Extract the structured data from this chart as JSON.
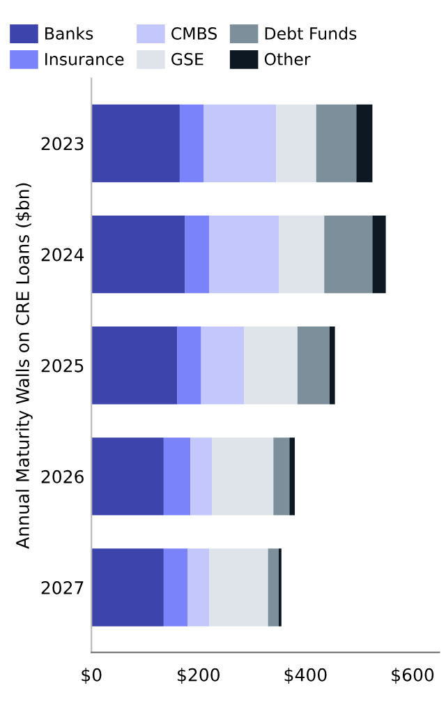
{
  "chart_data": {
    "type": "bar",
    "orientation": "horizontal",
    "stacked": true,
    "ylabel": "Annual Maturity Walls on CRE Loans ($bn)",
    "categories": [
      "2023",
      "2024",
      "2025",
      "2026",
      "2027"
    ],
    "series": [
      {
        "name": "Banks",
        "color": "#3d45ad",
        "values": [
          165,
          175,
          160,
          135,
          135
        ]
      },
      {
        "name": "Insurance",
        "color": "#7b83fb",
        "values": [
          45,
          45,
          45,
          50,
          45
        ]
      },
      {
        "name": "CMBS",
        "color": "#c3c7fb",
        "values": [
          135,
          130,
          80,
          40,
          40
        ]
      },
      {
        "name": "GSE",
        "color": "#dfe4ea",
        "values": [
          75,
          85,
          100,
          115,
          110
        ]
      },
      {
        "name": "Debt Funds",
        "color": "#7c8f9b",
        "values": [
          75,
          90,
          60,
          30,
          20
        ]
      },
      {
        "name": "Other",
        "color": "#0d1823",
        "values": [
          30,
          25,
          10,
          10,
          5
        ]
      }
    ],
    "xlim": [
      0,
      650
    ],
    "xticks": [
      {
        "value": 0,
        "label": "$0"
      },
      {
        "value": 200,
        "label": "$200"
      },
      {
        "value": 400,
        "label": "$400"
      },
      {
        "value": 600,
        "label": "$600"
      }
    ],
    "legend": "top",
    "grid": false
  }
}
